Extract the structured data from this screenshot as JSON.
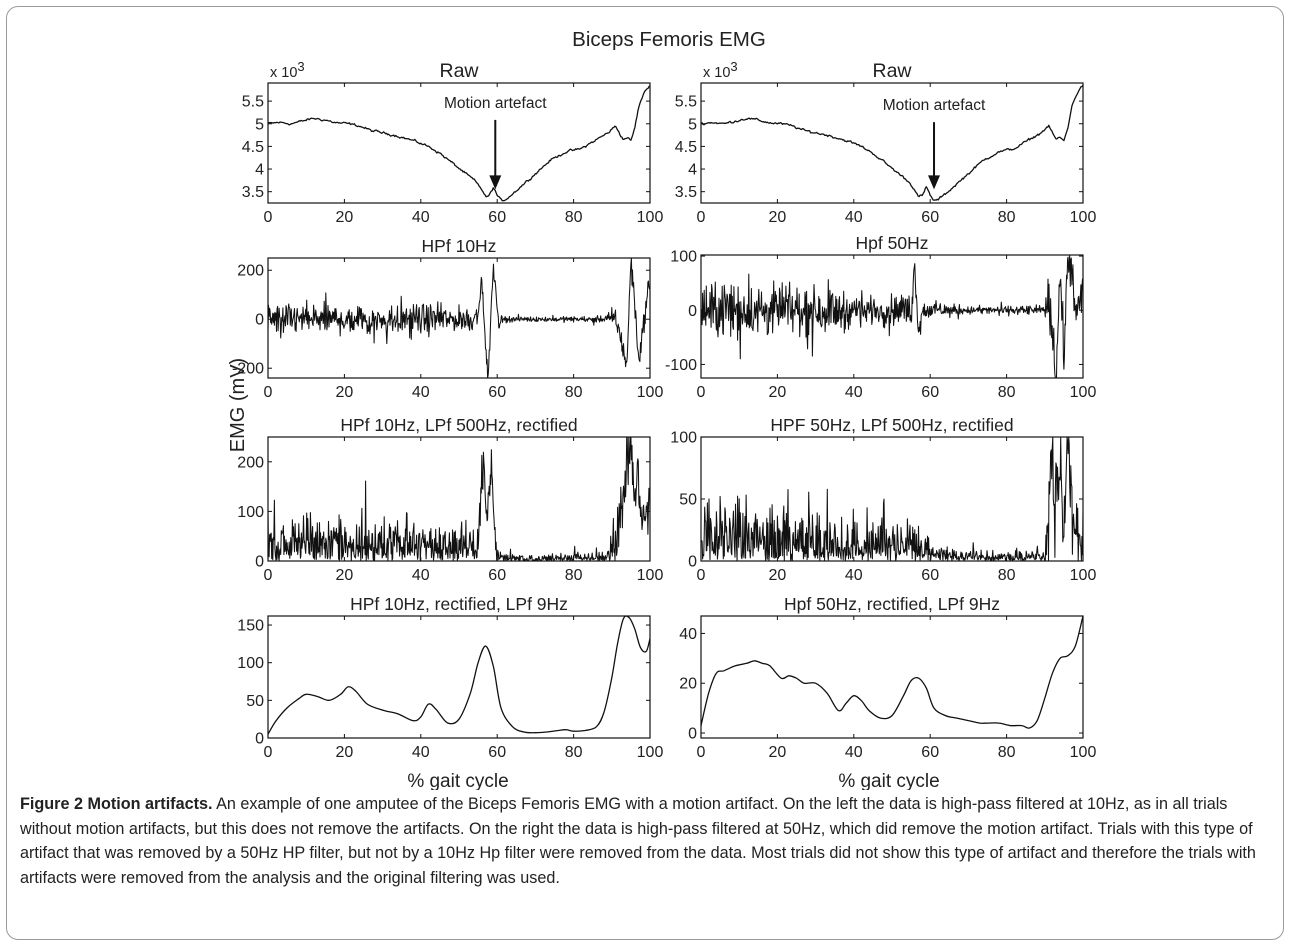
{
  "figure": {
    "title": "Biceps Femoris EMG",
    "ylabel": "EMG (mV)",
    "xlabel": "% gait cycle",
    "annotation_label": "Motion artefact",
    "exponent_label": "x 10",
    "exponent_power": "3"
  },
  "caption": {
    "label": "Figure 2 Motion artifacts.",
    "text": " An example of one amputee of the Biceps Femoris EMG with a motion artifact. On the left the data is high-pass filtered at 10Hz, as in all trials without motion artifacts, but this does not remove the artifacts. On the right the data is high-pass filtered at 50Hz, which did remove the motion artifact. Trials with this type of artifact that was removed by a 50Hz HP filter, but not by a 10Hz Hp filter were removed from the data. Most trials did not show this type of artifact and therefore the trials with artifacts were removed from the analysis and the original filtering was used."
  },
  "chart_data": [
    {
      "id": "raw-left",
      "type": "line",
      "title": "Raw",
      "exponent": "x 10^3",
      "xlim": [
        0,
        100
      ],
      "ylim": [
        3.25,
        5.9
      ],
      "xticks": [
        0,
        20,
        40,
        60,
        80,
        100
      ],
      "yticks": [
        3.5,
        4,
        4.5,
        5,
        5.5
      ],
      "ytick_labels": [
        "3.5",
        "4",
        "4.5",
        "5",
        "5.5"
      ],
      "annotation": {
        "text": "Motion artefact",
        "x": 59.5,
        "y_text": 5.35,
        "y_tip": 3.55
      },
      "noise": 0.035,
      "x": [
        0,
        3,
        6,
        9,
        12,
        15,
        18,
        21,
        24,
        27,
        30,
        33,
        36,
        39,
        42,
        45,
        48,
        51,
        54,
        56,
        57,
        58,
        59,
        60,
        61,
        62,
        64,
        66,
        70,
        74,
        78,
        82,
        86,
        89,
        91,
        93,
        94,
        95,
        96,
        97,
        98,
        99,
        100
      ],
      "y": [
        5.0,
        5.03,
        5.0,
        5.06,
        5.12,
        5.08,
        5.02,
        5.0,
        4.95,
        4.85,
        4.8,
        4.75,
        4.68,
        4.6,
        4.5,
        4.35,
        4.15,
        3.95,
        3.75,
        3.55,
        3.38,
        3.42,
        3.6,
        3.42,
        3.3,
        3.32,
        3.45,
        3.6,
        3.9,
        4.2,
        4.38,
        4.45,
        4.65,
        4.8,
        4.95,
        4.65,
        4.7,
        4.62,
        4.9,
        5.35,
        5.6,
        5.75,
        5.85
      ]
    },
    {
      "id": "raw-right",
      "type": "line",
      "title": "Raw",
      "exponent": "x 10^3",
      "xlim": [
        0,
        100
      ],
      "ylim": [
        3.25,
        5.9
      ],
      "xticks": [
        0,
        20,
        40,
        60,
        80,
        100
      ],
      "yticks": [
        3.5,
        4,
        4.5,
        5,
        5.5
      ],
      "ytick_labels": [
        "3.5",
        "4",
        "4.5",
        "5",
        "5.5"
      ],
      "annotation": {
        "text": "Motion artefact",
        "x": 61,
        "y_text": 5.3,
        "y_tip": 3.55
      },
      "noise": 0.035,
      "x": [
        0,
        3,
        6,
        9,
        12,
        15,
        18,
        21,
        24,
        27,
        30,
        33,
        36,
        39,
        42,
        45,
        48,
        51,
        54,
        56,
        57,
        58,
        59,
        60,
        61,
        62,
        64,
        66,
        70,
        74,
        78,
        82,
        86,
        89,
        91,
        93,
        94,
        95,
        96,
        97,
        98,
        99,
        100
      ],
      "y": [
        5.0,
        5.03,
        5.0,
        5.06,
        5.12,
        5.08,
        5.02,
        5.0,
        4.95,
        4.85,
        4.8,
        4.75,
        4.68,
        4.6,
        4.5,
        4.35,
        4.15,
        3.95,
        3.75,
        3.55,
        3.38,
        3.42,
        3.6,
        3.42,
        3.3,
        3.32,
        3.45,
        3.6,
        3.9,
        4.2,
        4.38,
        4.45,
        4.65,
        4.8,
        4.95,
        4.65,
        4.7,
        4.62,
        4.9,
        5.35,
        5.6,
        5.75,
        5.85
      ]
    },
    {
      "id": "hpf10-left",
      "type": "line",
      "title": "HPf 10Hz",
      "xlim": [
        0,
        100
      ],
      "ylim": [
        -240,
        250
      ],
      "xticks": [
        0,
        20,
        40,
        60,
        80,
        100
      ],
      "yticks": [
        -200,
        0,
        200
      ],
      "ytick_labels": [
        "-200",
        "0",
        "200"
      ],
      "noise": 65,
      "x": [
        0,
        10,
        20,
        30,
        40,
        44,
        46,
        48,
        52,
        54,
        55,
        56,
        57,
        57.5,
        58,
        58.5,
        59,
        60,
        60.5,
        61,
        62,
        66,
        70,
        76,
        80,
        86,
        89,
        91,
        92,
        93,
        94,
        95,
        96,
        97,
        98,
        99,
        100
      ],
      "y": [
        0,
        0,
        0,
        0,
        0,
        0,
        0,
        0,
        0,
        0,
        40,
        150,
        -120,
        -230,
        -140,
        80,
        200,
        60,
        -30,
        0,
        0,
        0,
        0,
        0,
        0,
        0,
        0,
        10,
        -60,
        -120,
        -180,
        240,
        80,
        -170,
        -60,
        60,
        150
      ],
      "envelope": {
        "x": [
          0,
          44,
          48,
          52,
          62,
          68,
          88,
          91,
          100
        ],
        "y": [
          1,
          1,
          0.7,
          0.9,
          0.2,
          0.15,
          0.2,
          0.9,
          0.7
        ]
      }
    },
    {
      "id": "hpf50-right",
      "type": "line",
      "title": "Hpf 50Hz",
      "xlim": [
        0,
        100
      ],
      "ylim": [
        -125,
        102
      ],
      "xticks": [
        0,
        20,
        40,
        60,
        80,
        100
      ],
      "yticks": [
        -100,
        0,
        100
      ],
      "ytick_labels": [
        "-100",
        "0",
        "100"
      ],
      "noise": 55,
      "x": [
        0,
        55,
        56,
        57,
        58,
        90,
        91,
        92,
        93,
        94,
        95,
        96,
        97,
        98,
        100
      ],
      "y": [
        0,
        0,
        80,
        -40,
        0,
        0,
        10,
        -40,
        -120,
        60,
        -80,
        90,
        95,
        -20,
        40
      ],
      "envelope": {
        "x": [
          0,
          30,
          45,
          55,
          60,
          70,
          90,
          91,
          100
        ],
        "y": [
          1,
          0.8,
          0.45,
          0.6,
          0.3,
          0.15,
          0.15,
          0.9,
          0.7
        ]
      }
    },
    {
      "id": "rect10-left",
      "type": "line",
      "title": "HPf 10Hz, LPf 500Hz, rectified",
      "xlim": [
        0,
        100
      ],
      "ylim": [
        0,
        250
      ],
      "xticks": [
        0,
        20,
        40,
        60,
        80,
        100
      ],
      "yticks": [
        0,
        100,
        200
      ],
      "ytick_labels": [
        "0",
        "100",
        "200"
      ],
      "noise": 85,
      "rectified": true,
      "x": [
        0,
        54,
        55,
        56,
        56.5,
        57,
        57.5,
        58,
        58.5,
        59,
        60,
        88,
        92,
        93,
        94,
        95,
        96,
        97,
        98,
        100
      ],
      "y": [
        0,
        0,
        40,
        150,
        220,
        120,
        80,
        170,
        200,
        90,
        0,
        0,
        70,
        130,
        190,
        250,
        100,
        180,
        70,
        120
      ],
      "envelope": {
        "x": [
          0,
          44,
          48,
          52,
          62,
          68,
          88,
          91,
          100
        ],
        "y": [
          1,
          1,
          0.7,
          0.9,
          0.2,
          0.15,
          0.2,
          0.9,
          0.7
        ]
      }
    },
    {
      "id": "rect50-right",
      "type": "line",
      "title": "HPF 50Hz, LPf 500Hz, rectified",
      "xlim": [
        0,
        100
      ],
      "ylim": [
        0,
        100
      ],
      "xticks": [
        0,
        20,
        40,
        60,
        80,
        100
      ],
      "yticks": [
        0,
        50,
        100
      ],
      "ytick_labels": [
        "0",
        "50",
        "100"
      ],
      "noise": 55,
      "rectified": true,
      "x": [
        0,
        90,
        91,
        92,
        93,
        94,
        95,
        96,
        97,
        98,
        100
      ],
      "y": [
        0,
        0,
        30,
        100,
        40,
        95,
        20,
        90,
        50,
        30,
        20
      ],
      "envelope": {
        "x": [
          0,
          30,
          45,
          55,
          60,
          70,
          90,
          91,
          100
        ],
        "y": [
          1,
          0.8,
          0.45,
          0.6,
          0.3,
          0.15,
          0.15,
          0.9,
          0.7
        ]
      }
    },
    {
      "id": "lp-left",
      "type": "line",
      "title": "HPf 10Hz, rectified, LPf 9Hz",
      "xlim": [
        0,
        100
      ],
      "ylim": [
        0,
        162
      ],
      "xticks": [
        0,
        20,
        40,
        60,
        80,
        100
      ],
      "yticks": [
        0,
        50,
        100,
        150
      ],
      "ytick_labels": [
        "0",
        "50",
        "100",
        "150"
      ],
      "x": [
        0,
        2,
        5,
        8,
        10,
        13,
        16,
        19,
        21,
        23,
        26,
        30,
        34,
        38,
        40,
        42,
        44,
        47,
        50,
        53,
        55,
        57,
        59,
        61,
        64,
        67,
        70,
        73,
        76,
        78,
        80,
        83,
        86,
        88,
        90,
        91.5,
        93,
        94.5,
        96,
        97.5,
        99,
        100
      ],
      "y": [
        5,
        22,
        40,
        52,
        58,
        55,
        50,
        58,
        68,
        62,
        45,
        37,
        32,
        23,
        28,
        45,
        38,
        20,
        25,
        60,
        100,
        122,
        95,
        40,
        15,
        8,
        7,
        8,
        10,
        11,
        9,
        10,
        15,
        35,
        80,
        125,
        158,
        160,
        145,
        120,
        115,
        132
      ]
    },
    {
      "id": "lp-right",
      "type": "line",
      "title": "Hpf 50Hz, rectified, LPf 9Hz",
      "xlim": [
        0,
        100
      ],
      "ylim": [
        -2,
        47
      ],
      "xticks": [
        0,
        20,
        40,
        60,
        80,
        100
      ],
      "yticks": [
        0,
        20,
        40
      ],
      "ytick_labels": [
        "0",
        "20",
        "40"
      ],
      "x": [
        0,
        2,
        4,
        6,
        9,
        12,
        14,
        16,
        18,
        21,
        23,
        25,
        27,
        30,
        33,
        36,
        38,
        40,
        42,
        44,
        47,
        50,
        53,
        55,
        57,
        59,
        61,
        64,
        67,
        70,
        73,
        75,
        78,
        81,
        84,
        86,
        88,
        90,
        92,
        94,
        96,
        98,
        100
      ],
      "y": [
        3,
        16,
        24,
        25,
        27,
        28,
        29,
        28,
        27,
        22,
        23,
        22,
        20,
        20,
        16,
        9,
        12,
        15,
        13,
        9,
        6,
        7,
        15,
        21,
        22,
        18,
        10,
        7,
        6,
        5,
        4,
        4,
        4,
        3,
        3,
        2,
        5,
        14,
        24,
        30,
        31,
        35,
        47
      ]
    }
  ]
}
